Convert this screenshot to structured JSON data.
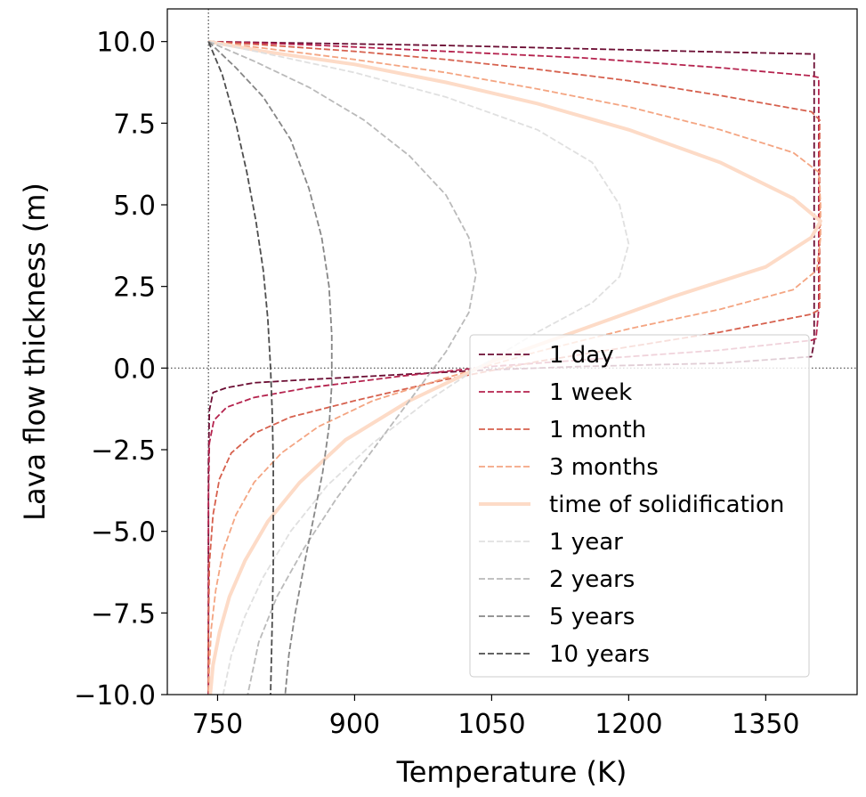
{
  "chart_data": {
    "type": "line",
    "title": "",
    "xlabel": "Temperature (K)",
    "ylabel": "Lava flow thickness (m)",
    "xlim": [
      695,
      1450
    ],
    "ylim": [
      -10,
      11
    ],
    "xticks": [
      750,
      900,
      1050,
      1200,
      1350
    ],
    "xtick_labels": [
      "750",
      "900",
      "1050",
      "1200",
      "1350"
    ],
    "yticks": [
      10.0,
      7.5,
      5.0,
      2.5,
      0.0,
      -2.5,
      -5.0,
      -7.5,
      -10.0
    ],
    "ytick_labels": [
      "10.0",
      "7.5",
      "5.0",
      "2.5",
      "0.0",
      "−2.5",
      "−5.0",
      "−7.5",
      "−10.0"
    ],
    "grid": false,
    "legend_placement": "lower-right",
    "reference_lines": [
      {
        "orientation": "vertical",
        "value": 740,
        "style": "dotted",
        "color": "#444444"
      },
      {
        "orientation": "horizontal",
        "value": 0.0,
        "style": "dotted",
        "color": "#444444"
      }
    ],
    "series": [
      {
        "name": "1 day",
        "color": "#6b0d33",
        "dash": "dashed",
        "width": 1.8,
        "points": [
          [
            740,
            10
          ],
          [
            760,
            9.99
          ],
          [
            850,
            9.95
          ],
          [
            1000,
            9.88
          ],
          [
            1150,
            9.78
          ],
          [
            1300,
            9.68
          ],
          [
            1400,
            9.62
          ],
          [
            1403,
            9.62
          ],
          [
            1403,
            9.0
          ],
          [
            1403,
            0.8
          ],
          [
            1400,
            0.35
          ],
          [
            1300,
            0.15
          ],
          [
            1150,
            0.05
          ],
          [
            1050,
            -0.05
          ],
          [
            950,
            -0.2
          ],
          [
            850,
            -0.35
          ],
          [
            790,
            -0.45
          ],
          [
            760,
            -0.6
          ],
          [
            745,
            -0.75
          ],
          [
            741,
            -1.3
          ],
          [
            740,
            -3
          ],
          [
            740,
            -10
          ]
        ]
      },
      {
        "name": "1 week",
        "color": "#b5234e",
        "dash": "dashed",
        "width": 1.8,
        "points": [
          [
            740,
            10
          ],
          [
            780,
            9.97
          ],
          [
            850,
            9.9
          ],
          [
            1000,
            9.7
          ],
          [
            1150,
            9.5
          ],
          [
            1300,
            9.2
          ],
          [
            1400,
            8.95
          ],
          [
            1408,
            8.9
          ],
          [
            1408,
            8.0
          ],
          [
            1408,
            1.8
          ],
          [
            1405,
            0.9
          ],
          [
            1400,
            0.85
          ],
          [
            1300,
            0.55
          ],
          [
            1150,
            0.25
          ],
          [
            1050,
            0.05
          ],
          [
            950,
            -0.25
          ],
          [
            850,
            -0.6
          ],
          [
            790,
            -0.9
          ],
          [
            760,
            -1.2
          ],
          [
            746,
            -1.6
          ],
          [
            741,
            -2.3
          ],
          [
            740,
            -4
          ],
          [
            740,
            -10
          ]
        ]
      },
      {
        "name": "1 month",
        "color": "#d6604d",
        "dash": "dashed",
        "width": 1.8,
        "points": [
          [
            740,
            10
          ],
          [
            800,
            9.9
          ],
          [
            900,
            9.7
          ],
          [
            1000,
            9.45
          ],
          [
            1100,
            9.15
          ],
          [
            1200,
            8.8
          ],
          [
            1300,
            8.35
          ],
          [
            1400,
            7.85
          ],
          [
            1409,
            7.6
          ],
          [
            1409,
            6.5
          ],
          [
            1409,
            3.0
          ],
          [
            1409,
            1.8
          ],
          [
            1400,
            1.65
          ],
          [
            1300,
            1.1
          ],
          [
            1200,
            0.65
          ],
          [
            1100,
            0.2
          ],
          [
            1000,
            -0.35
          ],
          [
            900,
            -1.0
          ],
          [
            830,
            -1.5
          ],
          [
            790,
            -2.0
          ],
          [
            765,
            -2.6
          ],
          [
            752,
            -3.4
          ],
          [
            745,
            -4.5
          ],
          [
            741,
            -6
          ],
          [
            740,
            -8
          ],
          [
            740,
            -10
          ]
        ]
      },
      {
        "name": "3 months",
        "color": "#f4a582",
        "dash": "dashed",
        "width": 1.8,
        "points": [
          [
            740,
            10
          ],
          [
            800,
            9.8
          ],
          [
            900,
            9.45
          ],
          [
            1000,
            9.05
          ],
          [
            1100,
            8.55
          ],
          [
            1200,
            8.0
          ],
          [
            1300,
            7.3
          ],
          [
            1380,
            6.6
          ],
          [
            1408,
            6.0
          ],
          [
            1410,
            5.0
          ],
          [
            1410,
            4.0
          ],
          [
            1406,
            3.0
          ],
          [
            1380,
            2.4
          ],
          [
            1300,
            1.8
          ],
          [
            1200,
            1.2
          ],
          [
            1100,
            0.5
          ],
          [
            1000,
            -0.3
          ],
          [
            920,
            -1.0
          ],
          [
            860,
            -1.8
          ],
          [
            820,
            -2.6
          ],
          [
            790,
            -3.5
          ],
          [
            770,
            -4.5
          ],
          [
            756,
            -5.6
          ],
          [
            748,
            -6.8
          ],
          [
            743,
            -8.0
          ],
          [
            741,
            -9.2
          ],
          [
            740,
            -10
          ]
        ]
      },
      {
        "name": "time of solidification",
        "color": "#fddbc7",
        "dash": "solid",
        "width": 4,
        "points": [
          [
            740,
            10
          ],
          [
            800,
            9.7
          ],
          [
            900,
            9.3
          ],
          [
            1000,
            8.75
          ],
          [
            1100,
            8.1
          ],
          [
            1200,
            7.3
          ],
          [
            1300,
            6.3
          ],
          [
            1380,
            5.2
          ],
          [
            1410,
            4.5
          ],
          [
            1400,
            4.0
          ],
          [
            1350,
            3.1
          ],
          [
            1250,
            2.2
          ],
          [
            1150,
            1.2
          ],
          [
            1050,
            0.2
          ],
          [
            960,
            -1.0
          ],
          [
            890,
            -2.2
          ],
          [
            840,
            -3.5
          ],
          [
            805,
            -4.7
          ],
          [
            780,
            -5.9
          ],
          [
            763,
            -7.0
          ],
          [
            752,
            -8.1
          ],
          [
            745,
            -9.1
          ],
          [
            742,
            -10
          ]
        ]
      },
      {
        "name": "1 year",
        "color": "#e0e0e0",
        "dash": "dashed",
        "width": 1.8,
        "points": [
          [
            740,
            10
          ],
          [
            800,
            9.65
          ],
          [
            900,
            9.05
          ],
          [
            1000,
            8.3
          ],
          [
            1100,
            7.3
          ],
          [
            1160,
            6.3
          ],
          [
            1190,
            5.0
          ],
          [
            1200,
            3.8
          ],
          [
            1190,
            2.8
          ],
          [
            1160,
            2.0
          ],
          [
            1100,
            1.1
          ],
          [
            1040,
            0.1
          ],
          [
            980,
            -1.0
          ],
          [
            920,
            -2.3
          ],
          [
            870,
            -3.6
          ],
          [
            830,
            -5.0
          ],
          [
            800,
            -6.4
          ],
          [
            780,
            -7.6
          ],
          [
            765,
            -8.8
          ],
          [
            756,
            -10
          ]
        ]
      },
      {
        "name": "2 years",
        "color": "#bababa",
        "dash": "dashed",
        "width": 1.8,
        "points": [
          [
            740,
            10
          ],
          [
            790,
            9.4
          ],
          [
            850,
            8.6
          ],
          [
            910,
            7.6
          ],
          [
            960,
            6.5
          ],
          [
            1000,
            5.3
          ],
          [
            1025,
            4.0
          ],
          [
            1033,
            2.9
          ],
          [
            1025,
            1.7
          ],
          [
            1000,
            0.5
          ],
          [
            960,
            -1.0
          ],
          [
            920,
            -2.5
          ],
          [
            880,
            -4.0
          ],
          [
            845,
            -5.5
          ],
          [
            815,
            -7.0
          ],
          [
            795,
            -8.4
          ],
          [
            783,
            -10
          ]
        ]
      },
      {
        "name": "5 years",
        "color": "#878787",
        "dash": "dashed",
        "width": 1.8,
        "points": [
          [
            740,
            10
          ],
          [
            770,
            9.2
          ],
          [
            800,
            8.3
          ],
          [
            830,
            7.0
          ],
          [
            850,
            5.5
          ],
          [
            864,
            4.0
          ],
          [
            872,
            2.5
          ],
          [
            875,
            1.0
          ],
          [
            875,
            -0.5
          ],
          [
            872,
            -1.8
          ],
          [
            865,
            -3.2
          ],
          [
            855,
            -4.6
          ],
          [
            845,
            -6.0
          ],
          [
            835,
            -7.5
          ],
          [
            828,
            -8.8
          ],
          [
            824,
            -10
          ]
        ]
      },
      {
        "name": "10 years",
        "color": "#4d4d4d",
        "dash": "dashed",
        "width": 1.8,
        "points": [
          [
            740,
            10
          ],
          [
            755,
            9.0
          ],
          [
            770,
            7.5
          ],
          [
            782,
            6.0
          ],
          [
            792,
            4.5
          ],
          [
            800,
            3.0
          ],
          [
            805,
            1.5
          ],
          [
            808,
            0.0
          ],
          [
            810,
            -1.5
          ],
          [
            811,
            -3.0
          ],
          [
            811,
            -4.5
          ],
          [
            811,
            -6.0
          ],
          [
            810,
            -7.5
          ],
          [
            809,
            -8.8
          ],
          [
            808,
            -10
          ]
        ]
      }
    ]
  }
}
